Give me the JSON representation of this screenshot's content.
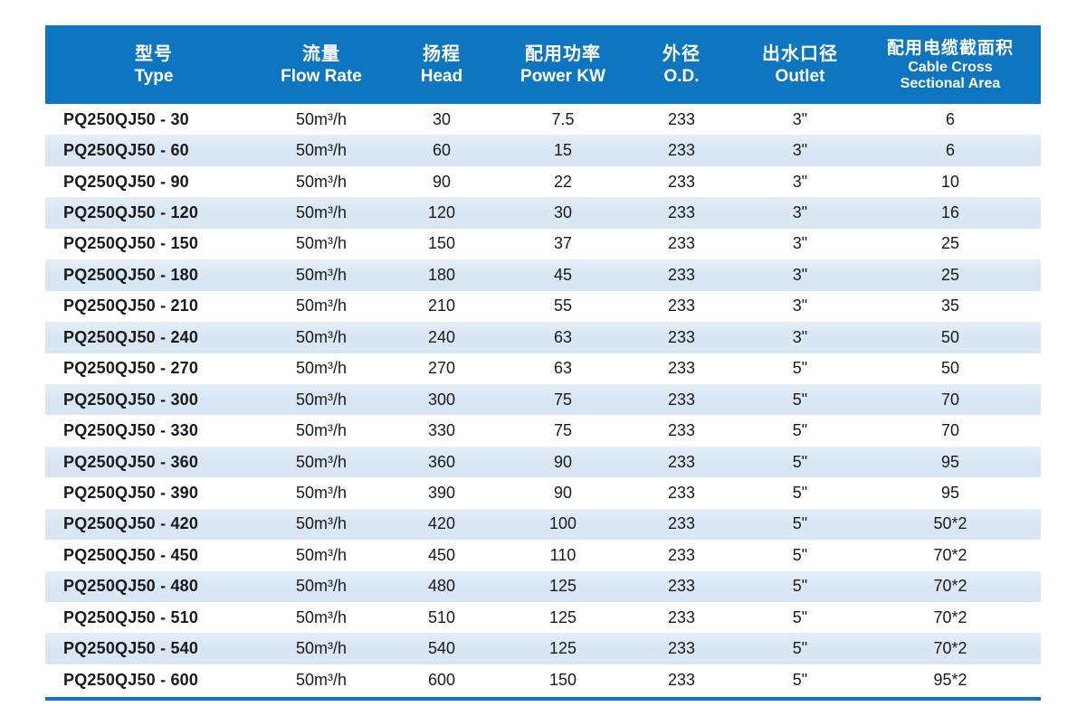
{
  "colors": {
    "header_bg": "#0e76c0",
    "header_text": "#ffffff",
    "row_bg": "#ffffff",
    "row_alt_bg": "#d9e7f5",
    "body_text": "#1a1a1a",
    "bottom_rule": "#1472d0"
  },
  "table": {
    "columns": [
      {
        "id": "type",
        "zh": "型号",
        "en": [
          "Type"
        ],
        "compact": false
      },
      {
        "id": "flow-rate",
        "zh": "流量",
        "en": [
          "Flow Rate"
        ],
        "compact": false
      },
      {
        "id": "head",
        "zh": "扬程",
        "en": [
          "Head"
        ],
        "compact": false
      },
      {
        "id": "power-kw",
        "zh": "配用功率",
        "en": [
          "Power KW"
        ],
        "compact": false
      },
      {
        "id": "od",
        "zh": "外径",
        "en": [
          "O.D."
        ],
        "compact": false
      },
      {
        "id": "outlet",
        "zh": "出水口径",
        "en": [
          "Outlet"
        ],
        "compact": false
      },
      {
        "id": "cable-cross-sectional-area",
        "zh": "配用电缆截面积",
        "en": [
          "Cable Cross",
          "Sectional Area"
        ],
        "compact": true
      }
    ],
    "rows": [
      [
        "PQ250QJ50 - 30",
        "50m³/h",
        "30",
        "7.5",
        "233",
        "3\"",
        "6"
      ],
      [
        "PQ250QJ50 - 60",
        "50m³/h",
        "60",
        "15",
        "233",
        "3\"",
        "6"
      ],
      [
        "PQ250QJ50 - 90",
        "50m³/h",
        "90",
        "22",
        "233",
        "3\"",
        "10"
      ],
      [
        "PQ250QJ50 - 120",
        "50m³/h",
        "120",
        "30",
        "233",
        "3\"",
        "16"
      ],
      [
        "PQ250QJ50 - 150",
        "50m³/h",
        "150",
        "37",
        "233",
        "3\"",
        "25"
      ],
      [
        "PQ250QJ50 - 180",
        "50m³/h",
        "180",
        "45",
        "233",
        "3\"",
        "25"
      ],
      [
        "PQ250QJ50 - 210",
        "50m³/h",
        "210",
        "55",
        "233",
        "3\"",
        "35"
      ],
      [
        "PQ250QJ50 - 240",
        "50m³/h",
        "240",
        "63",
        "233",
        "3\"",
        "50"
      ],
      [
        "PQ250QJ50 - 270",
        "50m³/h",
        "270",
        "63",
        "233",
        "5\"",
        "50"
      ],
      [
        "PQ250QJ50 - 300",
        "50m³/h",
        "300",
        "75",
        "233",
        "5\"",
        "70"
      ],
      [
        "PQ250QJ50 - 330",
        "50m³/h",
        "330",
        "75",
        "233",
        "5\"",
        "70"
      ],
      [
        "PQ250QJ50 - 360",
        "50m³/h",
        "360",
        "90",
        "233",
        "5\"",
        "95"
      ],
      [
        "PQ250QJ50 - 390",
        "50m³/h",
        "390",
        "90",
        "233",
        "5\"",
        "95"
      ],
      [
        "PQ250QJ50 - 420",
        "50m³/h",
        "420",
        "100",
        "233",
        "5\"",
        "50*2"
      ],
      [
        "PQ250QJ50 - 450",
        "50m³/h",
        "450",
        "110",
        "233",
        "5\"",
        "70*2"
      ],
      [
        "PQ250QJ50 - 480",
        "50m³/h",
        "480",
        "125",
        "233",
        "5\"",
        "70*2"
      ],
      [
        "PQ250QJ50 - 510",
        "50m³/h",
        "510",
        "125",
        "233",
        "5\"",
        "70*2"
      ],
      [
        "PQ250QJ50 - 540",
        "50m³/h",
        "540",
        "125",
        "233",
        "5\"",
        "70*2"
      ],
      [
        "PQ250QJ50 - 600",
        "50m³/h",
        "600",
        "150",
        "233",
        "5\"",
        "95*2"
      ]
    ]
  }
}
